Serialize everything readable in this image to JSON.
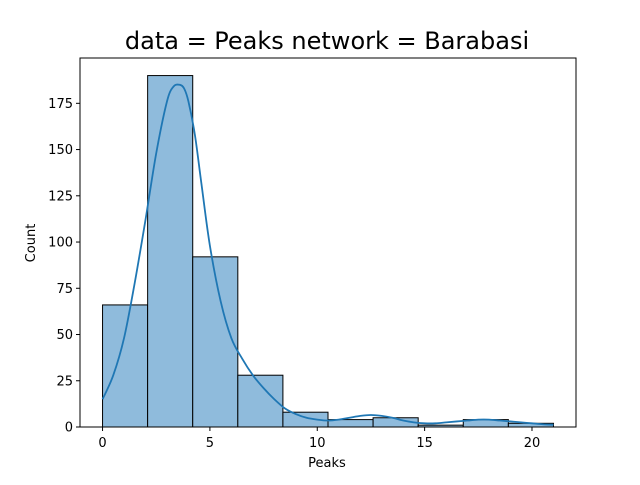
{
  "chart_data": {
    "type": "bar",
    "title": "data = Peaks network = Barabasi",
    "xlabel": "Peaks",
    "ylabel": "Count",
    "xlim": [
      -1.05,
      22.05
    ],
    "ylim": [
      0,
      199.5
    ],
    "xticks": [
      0,
      5,
      10,
      15,
      20
    ],
    "yticks": [
      0,
      25,
      50,
      75,
      100,
      125,
      150,
      175
    ],
    "grid": false,
    "bins": [
      {
        "x0": 0.0,
        "x1": 2.1,
        "count": 66
      },
      {
        "x0": 2.1,
        "x1": 4.2,
        "count": 190
      },
      {
        "x0": 4.2,
        "x1": 6.3,
        "count": 92
      },
      {
        "x0": 6.3,
        "x1": 8.4,
        "count": 28
      },
      {
        "x0": 8.4,
        "x1": 10.5,
        "count": 8
      },
      {
        "x0": 10.5,
        "x1": 12.6,
        "count": 4
      },
      {
        "x0": 12.6,
        "x1": 14.7,
        "count": 5
      },
      {
        "x0": 14.7,
        "x1": 16.8,
        "count": 1
      },
      {
        "x0": 16.8,
        "x1": 18.9,
        "count": 4
      },
      {
        "x0": 18.9,
        "x1": 21.0,
        "count": 2
      }
    ],
    "kde": {
      "x": [
        0,
        0.5,
        1,
        1.5,
        2,
        2.5,
        3,
        3.3,
        3.6,
        3.8,
        4,
        4.3,
        4.6,
        5,
        5.5,
        6,
        6.5,
        7,
        7.5,
        8,
        8.5,
        9,
        9.5,
        10,
        10.5,
        11,
        11.5,
        12,
        12.5,
        13,
        13.5,
        14,
        14.5,
        15,
        15.5,
        16,
        16.5,
        17,
        17.5,
        18,
        18.5,
        19,
        19.5,
        20,
        20.5,
        21
      ],
      "y": [
        15,
        28,
        48,
        78,
        112,
        148,
        176,
        184,
        185,
        183,
        176,
        158,
        132,
        98,
        68,
        48,
        37,
        28,
        21,
        15,
        10,
        7,
        5,
        4,
        3.5,
        4,
        5,
        6,
        6.5,
        6,
        5,
        3.5,
        2.5,
        2,
        2,
        2.5,
        3,
        3.5,
        4,
        4,
        3.5,
        3,
        2.5,
        2,
        1.5,
        1.2
      ]
    },
    "colors": {
      "bar_fill": "#8fbbdc",
      "bar_edge": "#000000",
      "kde_line": "#1f77b4"
    }
  }
}
